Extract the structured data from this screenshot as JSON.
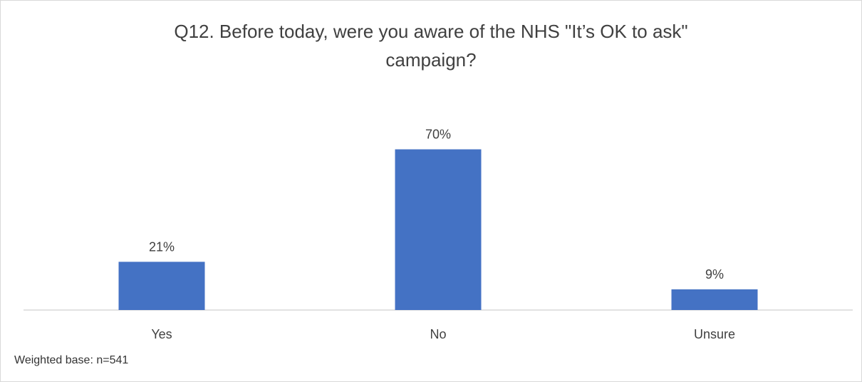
{
  "chart_data": {
    "type": "bar",
    "title": "Q12. Before today, were you aware of the NHS \"It’s OK to ask\"\ncampaign?",
    "categories": [
      "Yes",
      "No",
      "Unsure"
    ],
    "values": [
      21,
      70,
      9
    ],
    "data_labels": [
      "21%",
      "70%",
      "9%"
    ],
    "value_unit": "%",
    "ylim": [
      0,
      75
    ],
    "grid": false,
    "legend": "none",
    "bar_color": "#4472C4",
    "axis_color": "#d9d9d9"
  },
  "footnote": "Weighted base: n=541"
}
